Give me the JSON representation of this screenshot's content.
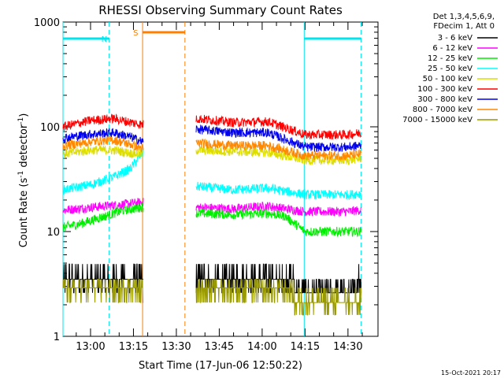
{
  "chart_data": {
    "type": "line",
    "title": "RHESSI Observing Summary Count Rates",
    "xlabel": "Start Time (17-Jun-06 12:50:22)",
    "ylabel_main": "Count Rate (s",
    "ylabel_sup1": "-1",
    "ylabel_mid": " detector",
    "ylabel_sup2": "-1",
    "ylabel_end": ")",
    "yscale": "log",
    "ylim": [
      1,
      1000
    ],
    "xlim_minutes": [
      -9.63,
      100.5
    ],
    "y_ticks": [
      {
        "value": 1,
        "label": "1"
      },
      {
        "value": 10,
        "label": "10"
      },
      {
        "value": 100,
        "label": "100"
      },
      {
        "value": 1000,
        "label": "1000"
      }
    ],
    "x_ticks": [
      {
        "minute": 0,
        "label": "13:00"
      },
      {
        "minute": 15,
        "label": "13:15"
      },
      {
        "minute": 30,
        "label": "13:30"
      },
      {
        "minute": 45,
        "label": "13:45"
      },
      {
        "minute": 60,
        "label": "14:00"
      },
      {
        "minute": 75,
        "label": "14:15"
      },
      {
        "minute": 90,
        "label": "14:30"
      }
    ],
    "legend_header": [
      "Det 1,3,4,5,6,9,",
      "FDecim 1, Att 0"
    ],
    "segments": [
      [
        -9.63,
        18.5
      ],
      [
        36.9,
        94.7
      ]
    ],
    "series": [
      {
        "name": "3 - 6 keV",
        "color": "#000000",
        "values": [
          [
            -9.6,
            3.6
          ],
          [
            0,
            3.6
          ],
          [
            10,
            3.6
          ],
          [
            18,
            3.5
          ],
          [
            37,
            3.5
          ],
          [
            55,
            3.6
          ],
          [
            68,
            3.5
          ],
          [
            75,
            2.6
          ],
          [
            90,
            2.6
          ],
          [
            94,
            3.2
          ]
        ]
      },
      {
        "name": "6 - 12 keV",
        "color": "#ff00ff",
        "values": [
          [
            -9.6,
            16
          ],
          [
            0,
            17
          ],
          [
            10,
            18
          ],
          [
            18,
            19
          ],
          [
            37,
            17
          ],
          [
            50,
            16.5
          ],
          [
            62,
            17.5
          ],
          [
            75,
            15.5
          ],
          [
            90,
            15.5
          ],
          [
            94,
            16
          ]
        ]
      },
      {
        "name": "12 - 25 keV",
        "color": "#00ee00",
        "values": [
          [
            -9.6,
            11
          ],
          [
            -3,
            12
          ],
          [
            5,
            14
          ],
          [
            12,
            16
          ],
          [
            18,
            17
          ],
          [
            37,
            15
          ],
          [
            50,
            14.5
          ],
          [
            62,
            15
          ],
          [
            68,
            14
          ],
          [
            75,
            10
          ],
          [
            90,
            10
          ],
          [
            94,
            10
          ]
        ]
      },
      {
        "name": "25 - 50 keV",
        "color": "#00ffff",
        "values": [
          [
            -9.6,
            25
          ],
          [
            0,
            28
          ],
          [
            8,
            33
          ],
          [
            14,
            40
          ],
          [
            18,
            56
          ],
          [
            37,
            27
          ],
          [
            50,
            25
          ],
          [
            62,
            26
          ],
          [
            75,
            22.5
          ],
          [
            90,
            22.5
          ],
          [
            94,
            23
          ]
        ]
      },
      {
        "name": "50 - 100 keV",
        "color": "#dddd00",
        "values": [
          [
            -9.6,
            55
          ],
          [
            0,
            60
          ],
          [
            8,
            60
          ],
          [
            14,
            56
          ],
          [
            18,
            55
          ],
          [
            37,
            60
          ],
          [
            50,
            58
          ],
          [
            62,
            57
          ],
          [
            75,
            48
          ],
          [
            90,
            48
          ],
          [
            94,
            50
          ]
        ]
      },
      {
        "name": "100 - 300 keV",
        "color": "#ff0000",
        "values": [
          [
            -9.6,
            100
          ],
          [
            0,
            115
          ],
          [
            8,
            120
          ],
          [
            14,
            110
          ],
          [
            18,
            105
          ],
          [
            37,
            120
          ],
          [
            50,
            110
          ],
          [
            62,
            112
          ],
          [
            75,
            84
          ],
          [
            90,
            84
          ],
          [
            94,
            87
          ]
        ]
      },
      {
        "name": "300 - 800 keV",
        "color": "#0000ee",
        "values": [
          [
            -9.6,
            78
          ],
          [
            0,
            85
          ],
          [
            8,
            88
          ],
          [
            14,
            80
          ],
          [
            18,
            72
          ],
          [
            37,
            95
          ],
          [
            50,
            88
          ],
          [
            62,
            88
          ],
          [
            75,
            64
          ],
          [
            90,
            64
          ],
          [
            94,
            66
          ]
        ]
      },
      {
        "name": "800 - 7000 keV",
        "color": "#ff8800",
        "values": [
          [
            -9.6,
            66
          ],
          [
            0,
            72
          ],
          [
            8,
            75
          ],
          [
            14,
            68
          ],
          [
            18,
            62
          ],
          [
            37,
            70
          ],
          [
            50,
            66
          ],
          [
            62,
            66
          ],
          [
            75,
            53
          ],
          [
            90,
            53
          ],
          [
            94,
            55
          ]
        ]
      },
      {
        "name": "7000 - 15000 keV",
        "color": "#999900",
        "values": [
          [
            -9.6,
            2.8
          ],
          [
            0,
            3.2
          ],
          [
            10,
            2.9
          ],
          [
            18,
            2.9
          ],
          [
            37,
            2.9
          ],
          [
            55,
            3.0
          ],
          [
            68,
            2.8
          ],
          [
            75,
            2.1
          ],
          [
            90,
            2.1
          ],
          [
            94,
            2.4
          ]
        ]
      }
    ],
    "annotations": [
      {
        "label": "N",
        "color": "#00e5ee",
        "start": -9.63,
        "end": 6.5,
        "marker_line_color": "#00e5ee"
      },
      {
        "label": "S",
        "color": "#ff7f00",
        "start": 18.2,
        "end": 33.0,
        "marker_line_color": "#ff7f00"
      },
      {
        "label": "",
        "color": "#00e5ee",
        "start": 74.7,
        "end": 94.6,
        "marker_line_color": "#00e5ee"
      }
    ],
    "footer_date": "15-Oct-2021 20:17"
  }
}
